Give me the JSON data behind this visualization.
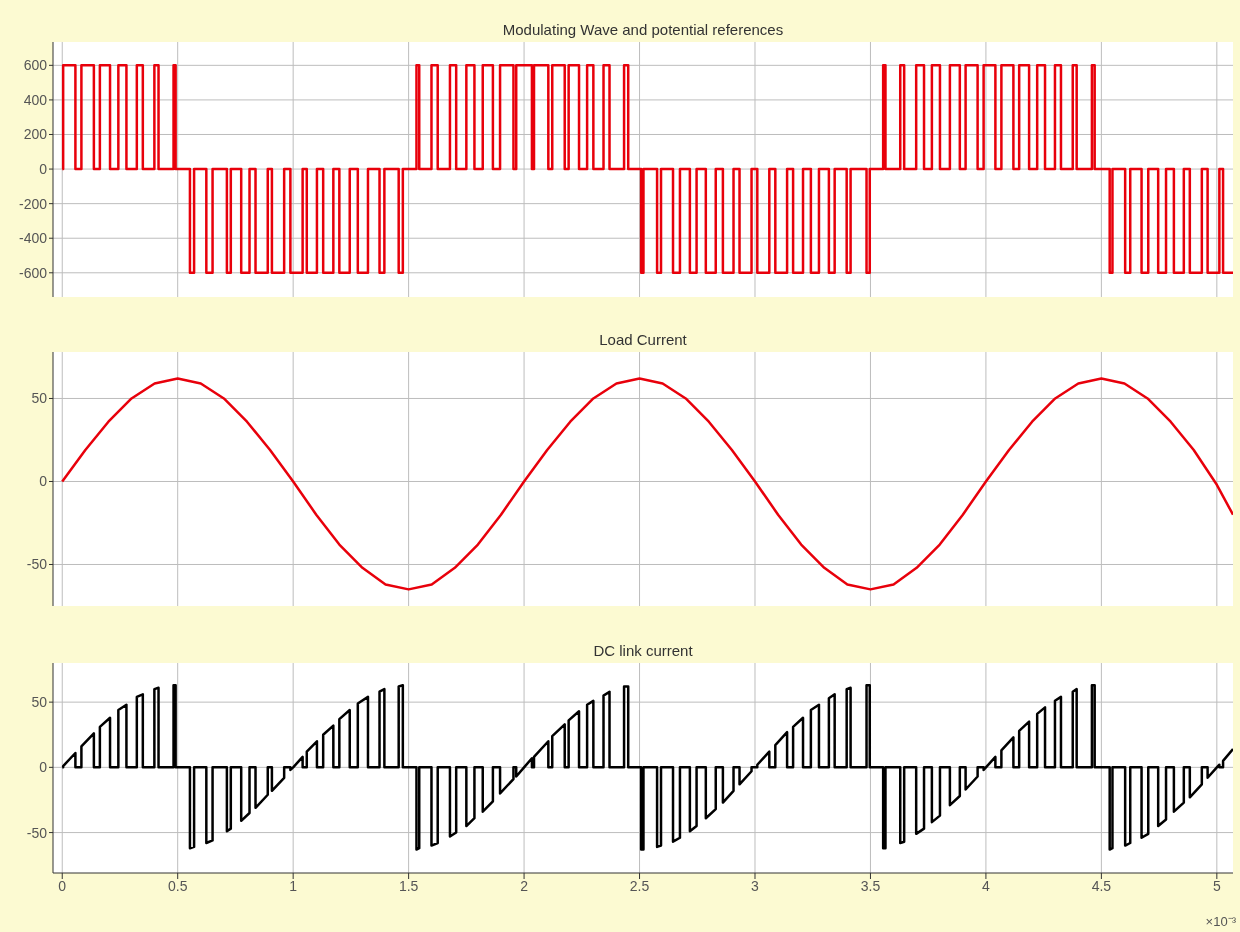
{
  "chart_data": [
    {
      "type": "step",
      "title": "Modulating Wave and potential references",
      "color": "#e8000b",
      "xlim": [
        -0.04,
        5.07
      ],
      "xticks": [
        0,
        0.5,
        1,
        1.5,
        2,
        2.5,
        3,
        3.5,
        4,
        4.5,
        5
      ],
      "ylim": [
        -740,
        735
      ],
      "yticks": [
        -600,
        -400,
        -200,
        0,
        200,
        400,
        600
      ],
      "grid": true,
      "tick_labels": "y",
      "x": [
        0,
        0.004,
        0.057,
        0.083,
        0.137,
        0.163,
        0.207,
        0.243,
        0.278,
        0.323,
        0.349,
        0.399,
        0.417,
        0.482,
        0.491,
        0.553,
        0.571,
        0.624,
        0.651,
        0.713,
        0.73,
        0.775,
        0.811,
        0.837,
        0.89,
        0.908,
        0.961,
        0.988,
        1.041,
        1.059,
        1.103,
        1.13,
        1.174,
        1.2,
        1.245,
        1.28,
        1.324,
        1.374,
        1.395,
        1.457,
        1.475,
        1.534,
        1.546,
        1.599,
        1.626,
        1.679,
        1.706,
        1.75,
        1.785,
        1.821,
        1.865,
        1.896,
        1.954,
        1.966,
        2.034,
        2.043,
        2.105,
        2.122,
        2.176,
        2.193,
        2.238,
        2.273,
        2.3,
        2.344,
        2.37,
        2.433,
        2.451,
        2.507,
        2.517,
        2.576,
        2.593,
        2.645,
        2.675,
        2.718,
        2.747,
        2.787,
        2.83,
        2.861,
        2.907,
        2.933,
        2.985,
        3.01,
        3.062,
        3.088,
        3.139,
        3.165,
        3.208,
        3.242,
        3.277,
        3.32,
        3.345,
        3.397,
        3.414,
        3.483,
        3.497,
        3.555,
        3.565,
        3.629,
        3.646,
        3.698,
        3.732,
        3.766,
        3.801,
        3.844,
        3.887,
        3.912,
        3.964,
        3.99,
        4.041,
        4.067,
        4.119,
        4.144,
        4.187,
        4.222,
        4.256,
        4.299,
        4.325,
        4.376,
        4.393,
        4.459,
        4.471,
        4.536,
        4.548,
        4.603,
        4.625,
        4.674,
        4.703,
        4.746,
        4.78,
        4.814,
        4.857,
        4.883,
        4.935,
        4.96,
        5.011,
        5.027,
        5.07
      ],
      "values": [
        0,
        600,
        0,
        600,
        0,
        600,
        0,
        600,
        0,
        600,
        0,
        600,
        0,
        600,
        0,
        -600,
        0,
        -600,
        0,
        -600,
        0,
        -600,
        0,
        -600,
        0,
        -600,
        0,
        -600,
        0,
        -600,
        0,
        -600,
        0,
        -600,
        0,
        -600,
        0,
        -600,
        0,
        -600,
        0,
        600,
        0,
        600,
        0,
        600,
        0,
        600,
        0,
        600,
        0,
        600,
        0,
        600,
        0,
        600,
        0,
        600,
        0,
        600,
        0,
        600,
        0,
        600,
        0,
        600,
        0,
        -600,
        0,
        -600,
        0,
        -600,
        0,
        -600,
        0,
        -600,
        0,
        -600,
        0,
        -600,
        0,
        -600,
        0,
        -600,
        0,
        -600,
        0,
        -600,
        0,
        -600,
        0,
        -600,
        0,
        -600,
        0,
        600,
        0,
        600,
        0,
        600,
        0,
        600,
        0,
        600,
        0,
        600,
        0,
        600,
        0,
        600,
        0,
        600,
        0,
        600,
        0,
        600,
        0,
        600,
        0,
        600,
        0,
        -600,
        0,
        -600,
        0,
        -600,
        0,
        -600,
        0,
        -600,
        0,
        -600,
        0,
        -600,
        0,
        -600,
        -600
      ]
    },
    {
      "type": "line",
      "title": "Load Current",
      "color": "#e8000b",
      "xlim": [
        -0.04,
        5.07
      ],
      "xticks": [
        0,
        0.5,
        1,
        1.5,
        2,
        2.5,
        3,
        3.5,
        4,
        4.5,
        5
      ],
      "ylim": [
        -75,
        78
      ],
      "yticks": [
        -50,
        0,
        50
      ],
      "grid": true,
      "tick_labels": "y",
      "x": [
        0,
        0.1,
        0.2,
        0.3,
        0.4,
        0.5,
        0.6,
        0.7,
        0.8,
        0.9,
        1.0,
        1.1,
        1.2,
        1.3,
        1.4,
        1.5,
        1.6,
        1.7,
        1.8,
        1.9,
        2.0,
        2.1,
        2.2,
        2.3,
        2.4,
        2.5,
        2.6,
        2.7,
        2.8,
        2.9,
        3.0,
        3.1,
        3.2,
        3.3,
        3.4,
        3.5,
        3.6,
        3.7,
        3.8,
        3.9,
        4.0,
        4.1,
        4.2,
        4.3,
        4.4,
        4.5,
        4.6,
        4.7,
        4.8,
        4.9,
        5.0,
        5.07
      ],
      "values": [
        0,
        19,
        36,
        50,
        59,
        62,
        59,
        50,
        36,
        19,
        0,
        -20,
        -38,
        -52,
        -62,
        -65,
        -62,
        -52,
        -38,
        -20,
        0,
        19,
        36,
        50,
        59,
        62,
        59,
        50,
        36,
        19,
        0,
        -20,
        -38,
        -52,
        -62,
        -65,
        -62,
        -52,
        -38,
        -20,
        0,
        19,
        36,
        50,
        59,
        62,
        59,
        50,
        36,
        19,
        -2,
        -20
      ]
    },
    {
      "type": "line",
      "title": "DC link current",
      "color": "#000000",
      "xlim": [
        -0.04,
        5.07
      ],
      "xticks": [
        0,
        0.5,
        1,
        1.5,
        2,
        2.5,
        3,
        3.5,
        4,
        4.5,
        5
      ],
      "ylim": [
        -81,
        80
      ],
      "yticks": [
        -50,
        0,
        50
      ],
      "grid": true,
      "annotations": [
        "×10⁻³"
      ],
      "x": [
        0,
        0.004,
        0.004,
        0.057,
        0.057,
        0.083,
        0.083,
        0.137,
        0.137,
        0.163,
        0.163,
        0.207,
        0.207,
        0.243,
        0.243,
        0.278,
        0.278,
        0.323,
        0.323,
        0.349,
        0.349,
        0.399,
        0.399,
        0.417,
        0.417,
        0.482,
        0.482,
        0.491,
        0.491,
        0.553,
        0.553,
        0.571,
        0.571,
        0.624,
        0.624,
        0.651,
        0.651,
        0.713,
        0.713,
        0.73,
        0.73,
        0.775,
        0.775,
        0.811,
        0.811,
        0.837,
        0.837,
        0.89,
        0.89,
        0.908,
        0.908,
        0.961,
        0.961,
        0.988,
        0.988,
        1.0,
        1.041,
        1.041,
        1.059,
        1.059,
        1.103,
        1.103,
        1.13,
        1.13,
        1.174,
        1.174,
        1.2,
        1.2,
        1.245,
        1.245,
        1.28,
        1.28,
        1.324,
        1.324,
        1.374,
        1.374,
        1.395,
        1.395,
        1.457,
        1.457,
        1.475,
        1.475,
        1.534,
        1.534,
        1.546,
        1.546,
        1.599,
        1.599,
        1.626,
        1.626,
        1.679,
        1.679,
        1.706,
        1.706,
        1.75,
        1.75,
        1.785,
        1.785,
        1.821,
        1.821,
        1.865,
        1.865,
        1.896,
        1.896,
        1.954,
        1.954,
        1.966,
        1.966,
        2.0,
        2.034,
        2.034,
        2.043,
        2.043,
        2.105,
        2.105,
        2.122,
        2.122,
        2.176,
        2.176,
        2.193,
        2.193,
        2.238,
        2.238,
        2.273,
        2.273,
        2.3,
        2.3,
        2.344,
        2.344,
        2.37,
        2.37,
        2.433,
        2.433,
        2.451,
        2.451,
        2.507,
        2.507,
        2.517,
        2.517,
        2.576,
        2.576,
        2.593,
        2.593,
        2.645,
        2.645,
        2.675,
        2.675,
        2.718,
        2.718,
        2.747,
        2.747,
        2.787,
        2.787,
        2.83,
        2.83,
        2.861,
        2.861,
        2.907,
        2.907,
        2.933,
        2.933,
        2.985,
        2.985,
        3.01,
        3.01,
        3.062,
        3.062,
        3.088,
        3.088,
        3.139,
        3.139,
        3.165,
        3.165,
        3.208,
        3.208,
        3.242,
        3.242,
        3.277,
        3.277,
        3.32,
        3.32,
        3.345,
        3.345,
        3.397,
        3.397,
        3.414,
        3.414,
        3.483,
        3.483,
        3.497,
        3.497,
        3.555,
        3.555,
        3.565,
        3.565,
        3.629,
        3.629,
        3.646,
        3.646,
        3.698,
        3.698,
        3.732,
        3.732,
        3.766,
        3.766,
        3.801,
        3.801,
        3.844,
        3.844,
        3.887,
        3.887,
        3.912,
        3.912,
        3.964,
        3.964,
        3.99,
        3.99,
        4.0,
        4.041,
        4.041,
        4.067,
        4.067,
        4.119,
        4.119,
        4.144,
        4.144,
        4.187,
        4.187,
        4.222,
        4.222,
        4.256,
        4.256,
        4.299,
        4.299,
        4.325,
        4.325,
        4.376,
        4.376,
        4.393,
        4.393,
        4.459,
        4.459,
        4.471,
        4.471,
        4.536,
        4.536,
        4.548,
        4.548,
        4.603,
        4.603,
        4.625,
        4.625,
        4.674,
        4.674,
        4.703,
        4.703,
        4.746,
        4.746,
        4.78,
        4.78,
        4.814,
        4.814,
        4.857,
        4.857,
        4.883,
        4.883,
        4.935,
        4.935,
        4.96,
        4.96,
        5.0,
        5.011,
        5.011,
        5.027,
        5.027,
        5.07
      ],
      "values": [
        0,
        0,
        1,
        11,
        0,
        0,
        16,
        26,
        0,
        0,
        31,
        38,
        0,
        0,
        44,
        48,
        0,
        0,
        54,
        56,
        0,
        0,
        60,
        61,
        0,
        0,
        63,
        63,
        0,
        0,
        -62,
        -61,
        0,
        0,
        -58,
        -56,
        0,
        0,
        -49,
        -47,
        0,
        0,
        -41,
        -35,
        0,
        0,
        -31,
        -21,
        0,
        0,
        -18,
        -8,
        0,
        0,
        -2,
        0,
        8,
        0,
        0,
        12,
        20,
        0,
        0,
        25,
        32,
        0,
        0,
        37,
        44,
        0,
        0,
        49,
        54,
        0,
        0,
        58,
        60,
        0,
        0,
        62,
        63,
        0,
        0,
        -63,
        -62,
        0,
        0,
        -60,
        -58,
        0,
        0,
        -53,
        -50,
        0,
        0,
        -45,
        -39,
        0,
        0,
        -34,
        -26,
        0,
        0,
        -20,
        -9,
        0,
        0,
        -7,
        0,
        7,
        0,
        0,
        8,
        20,
        0,
        0,
        24,
        33,
        0,
        0,
        36,
        43,
        0,
        0,
        48,
        51,
        0,
        0,
        55,
        58,
        0,
        0,
        62,
        62,
        0,
        0,
        -63,
        -63,
        0,
        0,
        -61,
        -60,
        0,
        0,
        -57,
        -54,
        0,
        0,
        -49,
        -45,
        0,
        0,
        -39,
        -32,
        0,
        0,
        -27,
        -18,
        0,
        0,
        -13,
        -3,
        0,
        0,
        2,
        12,
        0,
        0,
        17,
        27,
        0,
        0,
        31,
        38,
        0,
        0,
        44,
        48,
        0,
        0,
        53,
        56,
        0,
        0,
        60,
        61,
        0,
        0,
        63,
        63,
        0,
        0,
        -62,
        -62,
        0,
        0,
        -58,
        -57,
        0,
        0,
        -51,
        -47,
        0,
        0,
        -42,
        -37,
        0,
        0,
        -29,
        -22,
        0,
        0,
        -17,
        -7,
        0,
        0,
        -2,
        0,
        8,
        0,
        0,
        13,
        23,
        0,
        0,
        28,
        35,
        0,
        0,
        41,
        46,
        0,
        0,
        51,
        54,
        0,
        0,
        58,
        60,
        0,
        0,
        63,
        63,
        0,
        0,
        -63,
        -62,
        0,
        0,
        -60,
        -58,
        0,
        0,
        -54,
        -51,
        0,
        0,
        -45,
        -40,
        0,
        0,
        -34,
        -27,
        0,
        0,
        -23,
        -13,
        0,
        0,
        -8,
        0,
        2,
        0,
        0,
        5,
        14
      ]
    }
  ]
}
